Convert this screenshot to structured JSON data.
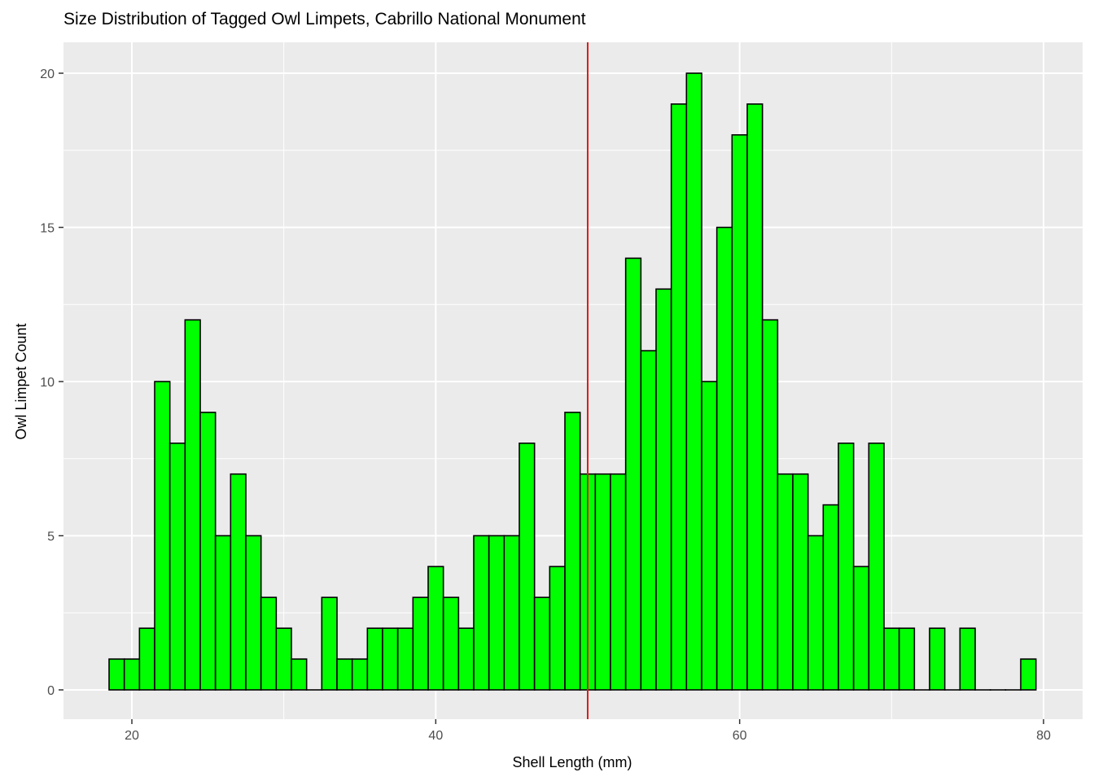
{
  "chart_data": {
    "type": "bar",
    "title": "Size Distribution of Tagged Owl Limpets, Cabrillo National Monument",
    "xlabel": "Shell Length (mm)",
    "ylabel": "Owl Limpet Count",
    "xlim": [
      15.5,
      80.5
    ],
    "ylim": [
      -1,
      21
    ],
    "bin_width": 1,
    "x": [
      19,
      20,
      21,
      22,
      23,
      24,
      25,
      26,
      27,
      28,
      29,
      30,
      31,
      32,
      33,
      34,
      35,
      36,
      37,
      38,
      39,
      40,
      41,
      42,
      43,
      44,
      45,
      46,
      47,
      48,
      49,
      50,
      51,
      52,
      53,
      54,
      55,
      56,
      57,
      58,
      59,
      60,
      61,
      62,
      63,
      64,
      65,
      66,
      67,
      68,
      69,
      70,
      71,
      72,
      73,
      74,
      75,
      76,
      77,
      78,
      79
    ],
    "values": [
      1,
      1,
      2,
      10,
      8,
      12,
      9,
      5,
      7,
      5,
      3,
      2,
      1,
      0,
      3,
      1,
      1,
      2,
      2,
      2,
      3,
      4,
      3,
      2,
      5,
      5,
      5,
      8,
      3,
      4,
      9,
      7,
      7,
      7,
      14,
      11,
      13,
      19,
      20,
      10,
      15,
      18,
      19,
      12,
      7,
      7,
      5,
      6,
      8,
      4,
      8,
      2,
      2,
      0,
      2,
      0,
      2,
      0,
      0,
      0,
      1
    ],
    "x_ticks": [
      20,
      40,
      60,
      80
    ],
    "y_ticks": [
      0,
      5,
      10,
      15,
      20
    ],
    "vline": {
      "x": 50,
      "color": "#e31a1c"
    },
    "bar_fill": "#00ff00",
    "bar_stroke": "#000000",
    "panel_background": "#ebebeb",
    "grid": true
  }
}
